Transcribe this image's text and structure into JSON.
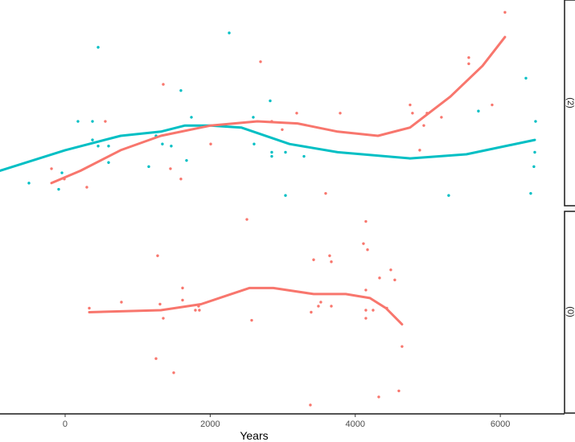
{
  "chart_data": {
    "type": "scatter",
    "xlabel": "Years",
    "ylabel": "",
    "xlim": [
      -898,
      6830
    ],
    "x_ticks": [
      0,
      2000,
      4000,
      6000
    ],
    "x_tick_labels": [
      "0",
      "2000",
      "4000",
      "6000"
    ],
    "grid": false,
    "facet_strip_position": "right",
    "series_colors": {
      "red": "#F8766D",
      "teal": "#00BFC4"
    },
    "panels": [
      {
        "strip_label": "(2)",
        "ylim": [
          0,
          10
        ],
        "series": [
          {
            "color": "#00BFC4",
            "points": [
              [
                -499,
                1.1
              ],
              [
                -89,
                0.8
              ],
              [
                -44,
                1.6
              ],
              [
                177,
                4.1
              ],
              [
                377,
                4.1
              ],
              [
                377,
                3.2
              ],
              [
                455,
                2.9
              ],
              [
                455,
                7.7
              ],
              [
                599,
                2.9
              ],
              [
                599,
                2.1
              ],
              [
                1153,
                1.9
              ],
              [
                1253,
                3.4
              ],
              [
                1341,
                3.0
              ],
              [
                1463,
                2.9
              ],
              [
                1596,
                5.6
              ],
              [
                1674,
                2.2
              ],
              [
                1741,
                4.3
              ],
              [
                2262,
                8.4
              ],
              [
                2594,
                4.3
              ],
              [
                2605,
                3.0
              ],
              [
                2827,
                5.1
              ],
              [
                2849,
                2.6
              ],
              [
                2849,
                2.4
              ],
              [
                3038,
                2.6
              ],
              [
                3038,
                0.5
              ],
              [
                3293,
                2.4
              ],
              [
                5288,
                0.5
              ],
              [
                5698,
                4.6
              ],
              [
                6353,
                6.2
              ],
              [
                6486,
                4.1
              ],
              [
                6475,
                2.6
              ],
              [
                6463,
                1.9
              ],
              [
                6419,
                0.6
              ]
            ],
            "smooth": [
              [
                -898,
                1.7
              ],
              [
                0,
                2.7
              ],
              [
                765,
                3.4
              ],
              [
                1319,
                3.6
              ],
              [
                1652,
                3.9
              ],
              [
                2007,
                3.9
              ],
              [
                2428,
                3.8
              ],
              [
                3093,
                3.0
              ],
              [
                3758,
                2.6
              ],
              [
                4756,
                2.3
              ],
              [
                5532,
                2.5
              ],
              [
                6475,
                3.2
              ]
            ]
          },
          {
            "color": "#F8766D",
            "points": [
              [
                -188,
                1.8
              ],
              [
                -11,
                1.3
              ],
              [
                299,
                0.9
              ],
              [
                554,
                4.1
              ],
              [
                1353,
                5.9
              ],
              [
                1452,
                1.8
              ],
              [
                1596,
                1.3
              ],
              [
                2007,
                3.0
              ],
              [
                2694,
                7.0
              ],
              [
                2849,
                4.1
              ],
              [
                2993,
                3.7
              ],
              [
                3193,
                4.5
              ],
              [
                3592,
                0.6
              ],
              [
                3792,
                4.5
              ],
              [
                4756,
                4.9
              ],
              [
                4789,
                4.5
              ],
              [
                4889,
                2.7
              ],
              [
                4945,
                3.9
              ],
              [
                4989,
                4.5
              ],
              [
                5188,
                4.3
              ],
              [
                5565,
                7.2
              ],
              [
                5565,
                6.9
              ],
              [
                5887,
                4.9
              ],
              [
                6064,
                9.4
              ]
            ],
            "smooth": [
              [
                -188,
                1.1
              ],
              [
                211,
                1.7
              ],
              [
                765,
                2.7
              ],
              [
                1319,
                3.4
              ],
              [
                2007,
                3.9
              ],
              [
                2650,
                4.1
              ],
              [
                3204,
                4.0
              ],
              [
                3758,
                3.6
              ],
              [
                4313,
                3.4
              ],
              [
                4756,
                3.8
              ],
              [
                5310,
                5.3
              ],
              [
                5754,
                6.8
              ],
              [
                6064,
                8.2
              ]
            ]
          }
        ]
      },
      {
        "strip_label": "(0)",
        "ylim": [
          0,
          10
        ],
        "series": [
          {
            "color": "#F8766D",
            "points": [
              [
                333,
                5.2
              ],
              [
                776,
                5.5
              ],
              [
                1275,
                7.8
              ],
              [
                1308,
                5.4
              ],
              [
                1353,
                4.7
              ],
              [
                1253,
                2.7
              ],
              [
                1497,
                2.0
              ],
              [
                1619,
                6.2
              ],
              [
                1619,
                5.6
              ],
              [
                1796,
                5.1
              ],
              [
                1851,
                5.1
              ],
              [
                1840,
                5.3
              ],
              [
                2506,
                9.6
              ],
              [
                2572,
                4.6
              ],
              [
                3392,
                5.0
              ],
              [
                3426,
                7.6
              ],
              [
                3492,
                5.3
              ],
              [
                3525,
                5.5
              ],
              [
                3647,
                7.8
              ],
              [
                3670,
                7.5
              ],
              [
                3670,
                5.3
              ],
              [
                3381,
                0.4
              ],
              [
                4146,
                9.5
              ],
              [
                4113,
                8.4
              ],
              [
                4169,
                8.1
              ],
              [
                4146,
                6.1
              ],
              [
                4146,
                5.1
              ],
              [
                4146,
                4.7
              ],
              [
                4246,
                5.1
              ],
              [
                4335,
                6.7
              ],
              [
                4490,
                7.1
              ],
              [
                4545,
                6.6
              ],
              [
                4435,
                5.2
              ],
              [
                4645,
                3.3
              ],
              [
                4601,
                1.1
              ],
              [
                4324,
                0.8
              ]
            ],
            "smooth": [
              [
                333,
                5.0
              ],
              [
                1319,
                5.1
              ],
              [
                1874,
                5.4
              ],
              [
                2206,
                5.8
              ],
              [
                2539,
                6.2
              ],
              [
                2871,
                6.2
              ],
              [
                3426,
                5.9
              ],
              [
                3869,
                5.9
              ],
              [
                4202,
                5.7
              ],
              [
                4424,
                5.2
              ],
              [
                4645,
                4.4
              ]
            ]
          }
        ]
      }
    ]
  }
}
